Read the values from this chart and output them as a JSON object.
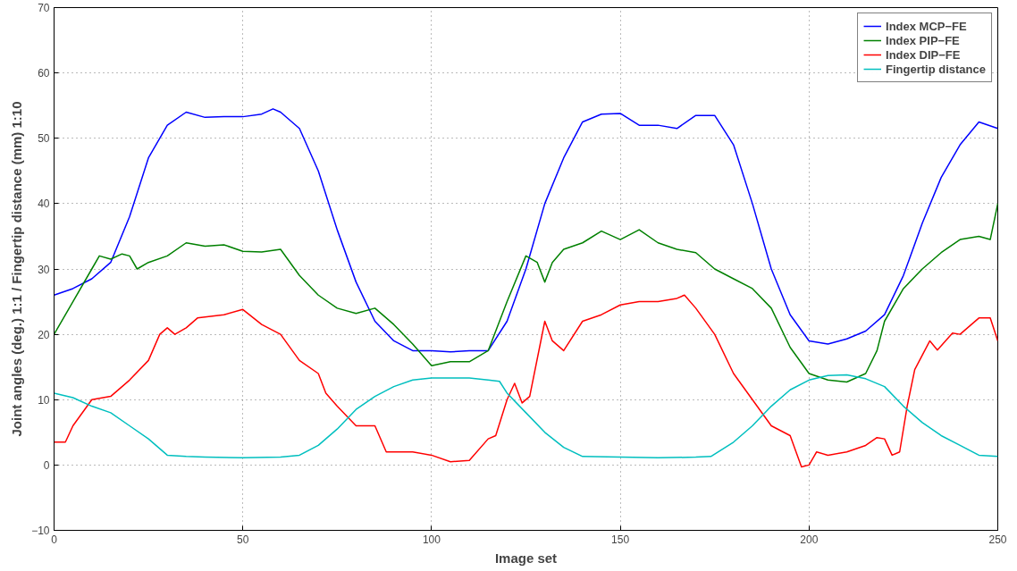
{
  "chart_data": {
    "type": "line",
    "xlabel": "Image set",
    "ylabel": "Joint angles (deg.) 1:1 / Fingertip distance (mm) 1:10",
    "xlim": [
      0,
      250
    ],
    "ylim": [
      -10,
      70
    ],
    "xticks": [
      0,
      50,
      100,
      150,
      200,
      250
    ],
    "yticks": [
      -10,
      0,
      10,
      20,
      30,
      40,
      50,
      60,
      70
    ],
    "grid": true,
    "legend": "top right",
    "line_style": "solid",
    "series": [
      {
        "name": "Index MCP−FE",
        "color": "#0000ff",
        "x": [
          0,
          5,
          10,
          15,
          20,
          25,
          30,
          35,
          40,
          45,
          50,
          55,
          58,
          60,
          65,
          70,
          75,
          80,
          85,
          90,
          95,
          100,
          105,
          110,
          115,
          120,
          125,
          130,
          135,
          140,
          145,
          150,
          155,
          160,
          165,
          170,
          175,
          180,
          185,
          190,
          195,
          200,
          205,
          210,
          215,
          220,
          225,
          230,
          235,
          240,
          245,
          250
        ],
        "values": [
          26,
          27,
          28.5,
          31,
          38,
          47,
          52,
          54,
          53.2,
          53.3,
          53.3,
          53.7,
          54.5,
          54,
          51.5,
          45,
          36,
          28,
          22,
          19,
          17.5,
          17.5,
          17.3,
          17.5,
          17.5,
          22,
          30,
          40,
          47,
          52.5,
          53.7,
          53.8,
          52,
          52,
          51.5,
          53.5,
          53.5,
          49,
          40,
          30,
          23,
          19,
          18.5,
          19.3,
          20.5,
          23,
          29,
          37,
          44,
          49,
          52.5,
          51.5
        ]
      },
      {
        "name": "Index PIP−FE",
        "color": "#008000",
        "x": [
          0,
          5,
          10,
          12,
          15,
          18,
          20,
          22,
          25,
          30,
          35,
          40,
          45,
          50,
          55,
          60,
          65,
          70,
          75,
          80,
          85,
          90,
          95,
          100,
          105,
          110,
          115,
          120,
          125,
          128,
          130,
          132,
          135,
          140,
          145,
          150,
          155,
          160,
          165,
          170,
          175,
          180,
          185,
          190,
          195,
          200,
          205,
          210,
          215,
          218,
          220,
          225,
          230,
          235,
          240,
          245,
          248,
          250
        ],
        "values": [
          20,
          25,
          30,
          32,
          31.5,
          32.3,
          32,
          30,
          31,
          32,
          34,
          33.5,
          33.7,
          32.7,
          32.6,
          33,
          29,
          26,
          24,
          23.2,
          24,
          21.5,
          18.5,
          15.2,
          15.8,
          15.8,
          17.5,
          25,
          32,
          31,
          28,
          31,
          33,
          34,
          35.8,
          34.5,
          36,
          34,
          33,
          32.5,
          30,
          28.5,
          27,
          24,
          18,
          14,
          13,
          12.7,
          14,
          17.5,
          22,
          27,
          30,
          32.5,
          34.5,
          35,
          34.5,
          40
        ]
      },
      {
        "name": "Index DIP−FE",
        "color": "#ff0000",
        "x": [
          0,
          3,
          5,
          10,
          15,
          20,
          25,
          28,
          30,
          32,
          35,
          38,
          45,
          50,
          55,
          60,
          65,
          70,
          72,
          75,
          80,
          83,
          85,
          88,
          92,
          95,
          100,
          105,
          110,
          115,
          117,
          120,
          122,
          124,
          126,
          130,
          132,
          135,
          140,
          145,
          150,
          155,
          160,
          165,
          167,
          170,
          175,
          180,
          185,
          190,
          195,
          198,
          200,
          202,
          205,
          210,
          215,
          218,
          220,
          222,
          224,
          226,
          228,
          232,
          234,
          238,
          240,
          245,
          248,
          250
        ],
        "values": [
          3.5,
          3.5,
          6,
          10,
          10.5,
          13,
          16,
          20,
          21,
          20,
          21,
          22.5,
          23,
          23.8,
          21.5,
          20,
          16,
          14,
          11,
          9,
          6,
          6,
          6,
          2,
          2,
          2,
          1.5,
          0.5,
          0.7,
          4,
          4.5,
          10,
          12.5,
          9.5,
          10.5,
          22,
          19,
          17.5,
          22,
          23,
          24.5,
          25,
          25,
          25.5,
          26,
          24,
          20,
          14,
          10,
          6,
          4.5,
          -0.3,
          0,
          2,
          1.5,
          2,
          3,
          4.2,
          4,
          1.5,
          2,
          9,
          14.6,
          19,
          17.6,
          20.2,
          20,
          22.5,
          22.5,
          19
        ]
      },
      {
        "name": "Fingertip distance",
        "color": "#00bfbf",
        "x": [
          0,
          5,
          10,
          15,
          20,
          25,
          30,
          35,
          40,
          50,
          60,
          65,
          70,
          75,
          80,
          85,
          90,
          95,
          100,
          105,
          110,
          115,
          118,
          120,
          125,
          130,
          135,
          140,
          150,
          160,
          170,
          174,
          180,
          185,
          190,
          195,
          200,
          205,
          210,
          215,
          220,
          225,
          230,
          235,
          240,
          245,
          250
        ],
        "values": [
          11,
          10.3,
          9,
          8,
          6,
          4,
          1.5,
          1.3,
          1.2,
          1.1,
          1.2,
          1.5,
          3,
          5.5,
          8.5,
          10.5,
          12,
          13,
          13.3,
          13.3,
          13.3,
          13,
          12.8,
          11,
          8,
          5,
          2.7,
          1.3,
          1.2,
          1.1,
          1.2,
          1.3,
          3.5,
          6,
          9,
          11.5,
          13,
          13.7,
          13.8,
          13.2,
          12,
          9,
          6.5,
          4.5,
          3,
          1.5,
          1.3
        ]
      }
    ]
  }
}
